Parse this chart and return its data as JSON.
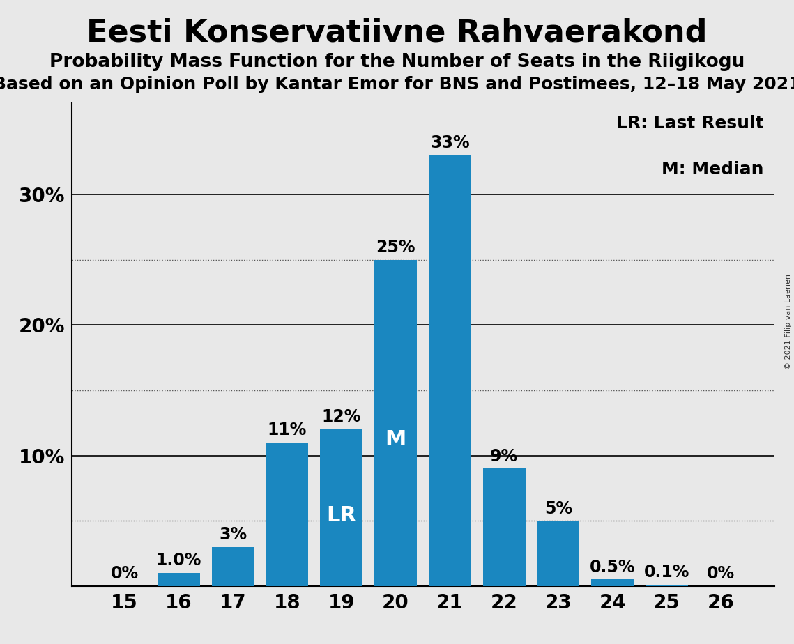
{
  "title": "Eesti Konservatiivne Rahvaerakond",
  "subtitle1": "Probability Mass Function for the Number of Seats in the Riigikogu",
  "subtitle2": "Based on an Opinion Poll by Kantar Emor for BNS and Postimees, 12–18 May 2021",
  "copyright": "© 2021 Filip van Laenen",
  "categories": [
    15,
    16,
    17,
    18,
    19,
    20,
    21,
    22,
    23,
    24,
    25,
    26
  ],
  "values": [
    0.0,
    1.0,
    3.0,
    11.0,
    12.0,
    25.0,
    33.0,
    9.0,
    5.0,
    0.5,
    0.1,
    0.0
  ],
  "labels": [
    "0%",
    "1.0%",
    "3%",
    "11%",
    "12%",
    "25%",
    "33%",
    "9%",
    "5%",
    "0.5%",
    "0.1%",
    "0%"
  ],
  "bar_color": "#1a87c0",
  "background_color": "#e8e8e8",
  "lr_bar_idx": 4,
  "median_bar_idx": 5,
  "ylim": [
    0,
    37
  ],
  "yticks": [
    0,
    10,
    20,
    30
  ],
  "ytick_labels": [
    "",
    "10%",
    "20%",
    "30%"
  ],
  "dotted_yticks": [
    5,
    15,
    25
  ],
  "legend_lr": "LR: Last Result",
  "legend_m": "M: Median",
  "title_fontsize": 32,
  "subtitle1_fontsize": 19,
  "subtitle2_fontsize": 18,
  "axis_label_fontsize": 20,
  "bar_label_fontsize": 17,
  "legend_fontsize": 18,
  "lr_m_fontsize": 22
}
